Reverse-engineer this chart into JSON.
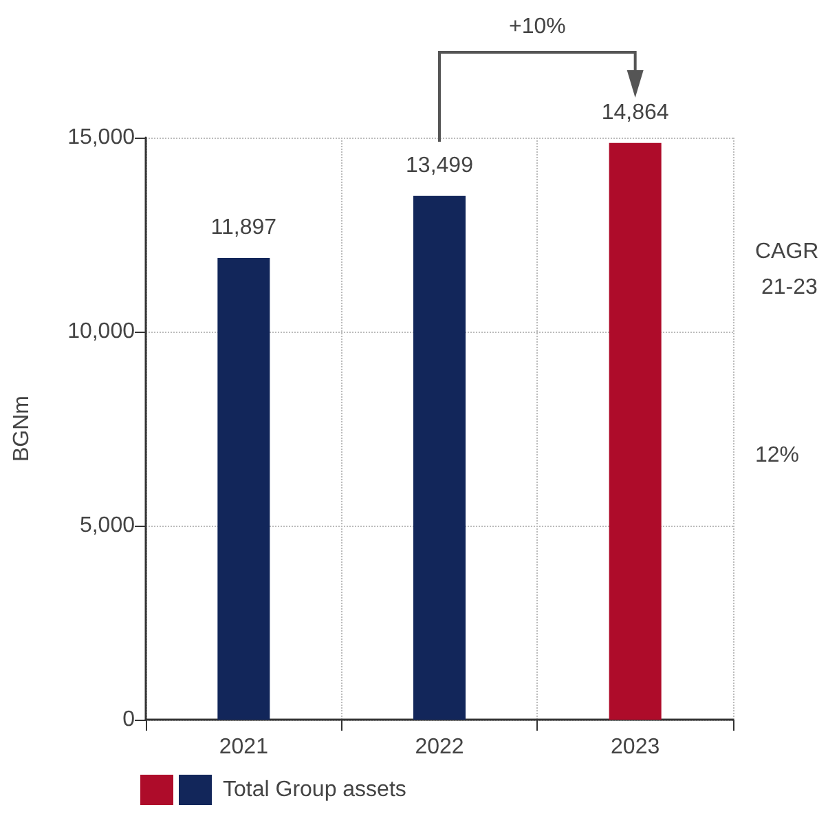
{
  "chart_data": {
    "type": "bar",
    "ylabel": "BGNm",
    "categories": [
      "2021",
      "2022",
      "2023"
    ],
    "series": [
      {
        "name": "Total Group assets",
        "colors": [
          "#12265a",
          "#12265a",
          "#ae0c2a"
        ],
        "values": [
          11897,
          13499,
          14864
        ],
        "value_labels": [
          "11,897",
          "13,499",
          "14,864"
        ]
      }
    ],
    "ylim": [
      0,
      15000
    ],
    "yticks": [
      {
        "value": 0,
        "label": "0"
      },
      {
        "value": 5000,
        "label": "5,000"
      },
      {
        "value": 10000,
        "label": "10,000"
      },
      {
        "value": 15000,
        "label": "15,000"
      }
    ],
    "grid": true,
    "legend": "bottom left",
    "annotations": [
      "+10%",
      "CAGR 21-23",
      "12%"
    ]
  }
}
